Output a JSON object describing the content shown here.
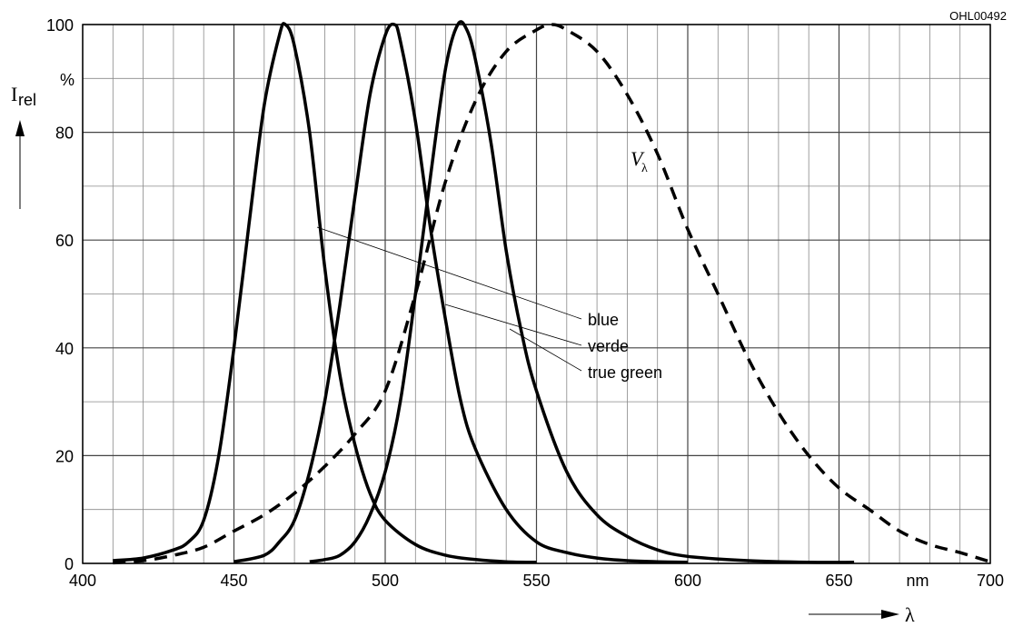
{
  "chart_data": {
    "type": "line",
    "figure_code": "OHL00492",
    "ylabel": "I",
    "ylabel_subscript": "rel",
    "y_unit": "%",
    "xlabel": "λ",
    "x_unit": "nm",
    "xlim": [
      400,
      700
    ],
    "ylim": [
      0,
      100
    ],
    "x_ticks": [
      400,
      450,
      500,
      550,
      600,
      650,
      700
    ],
    "y_ticks": [
      0,
      20,
      40,
      60,
      80,
      100
    ],
    "grid": true,
    "annotations": {
      "v_lambda": "V",
      "v_lambda_sub": "λ",
      "labels": [
        "blue",
        "verde",
        "true green"
      ]
    },
    "series": [
      {
        "name": "blue",
        "style": "solid",
        "x": [
          410,
          420,
          430,
          435,
          440,
          445,
          450,
          455,
          460,
          465,
          467,
          470,
          475,
          480,
          485,
          490,
          495,
          500,
          510,
          520,
          530,
          540,
          550
        ],
        "y": [
          0.5,
          1,
          2.5,
          4,
          8,
          20,
          40,
          63,
          85,
          98,
          100,
          96,
          80,
          55,
          35,
          22,
          13,
          8,
          3.5,
          1.5,
          0.7,
          0.3,
          0.2
        ]
      },
      {
        "name": "verde",
        "style": "solid",
        "x": [
          450,
          460,
          465,
          470,
          475,
          480,
          485,
          490,
          495,
          500,
          503,
          505,
          510,
          515,
          520,
          525,
          530,
          540,
          550,
          560,
          570,
          580,
          590,
          600
        ],
        "y": [
          0.3,
          1.5,
          4,
          8,
          17,
          30,
          48,
          68,
          87,
          98,
          100,
          97,
          82,
          62,
          45,
          30,
          21,
          10,
          4,
          2,
          1,
          0.5,
          0.3,
          0.2
        ]
      },
      {
        "name": "true green",
        "style": "solid",
        "x": [
          475,
          480,
          485,
          490,
          495,
          500,
          505,
          510,
          515,
          520,
          524,
          527,
          530,
          535,
          540,
          545,
          550,
          560,
          570,
          580,
          590,
          600,
          620,
          640,
          655
        ],
        "y": [
          0.3,
          0.7,
          1.5,
          4,
          9,
          17,
          30,
          50,
          72,
          92,
          100,
          99,
          93,
          78,
          58,
          43,
          32,
          17,
          9,
          5,
          2.5,
          1.3,
          0.5,
          0.2,
          0.2
        ]
      },
      {
        "name": "V",
        "style": "dashed",
        "x": [
          410,
          420,
          430,
          440,
          450,
          460,
          470,
          480,
          490,
          500,
          510,
          520,
          530,
          540,
          550,
          555,
          560,
          570,
          580,
          590,
          600,
          610,
          620,
          630,
          640,
          650,
          660,
          670,
          680,
          690,
          700
        ],
        "y": [
          0.1,
          0.5,
          1.5,
          3,
          6,
          9,
          13,
          18,
          24,
          32,
          50,
          71,
          86,
          95,
          99,
          100,
          99,
          95,
          87,
          76,
          62,
          50,
          38,
          28,
          20,
          14,
          10,
          6,
          3.5,
          2,
          0.3
        ]
      }
    ]
  }
}
